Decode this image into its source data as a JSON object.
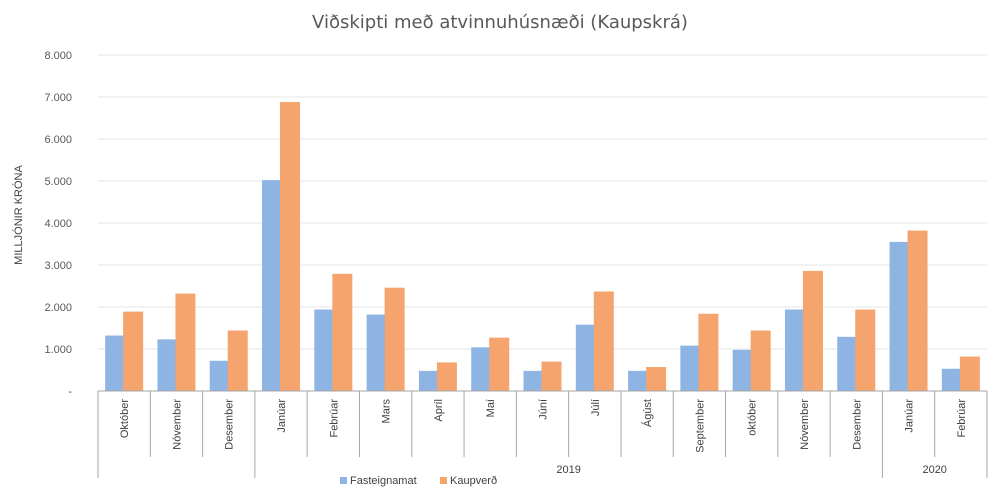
{
  "chart_data": {
    "type": "bar",
    "title": "Viðskipti með atvinnuhúsnæði (Kaupskrá)",
    "ylabel": "MILLJÓNIR KRÓNA",
    "xlabel": "",
    "ylim": [
      0,
      8000
    ],
    "yticks": [
      0,
      1000,
      2000,
      3000,
      4000,
      5000,
      6000,
      7000,
      8000
    ],
    "ytick_labels": [
      "-",
      "1.000",
      "2.000",
      "3.000",
      "4.000",
      "5.000",
      "6.000",
      "7.000",
      "8.000"
    ],
    "categories": [
      "Október",
      "Nóvember",
      "Desember",
      "Janúar",
      "Febrúar",
      "Mars",
      "Apríl",
      "Maí",
      "Júní",
      "Júlí",
      "Ágúst",
      "September",
      "október",
      "Nóvember",
      "Desember",
      "Janúar",
      "Febrúar"
    ],
    "groups": [
      {
        "label": "",
        "count": 3
      },
      {
        "label": "2019",
        "count": 12
      },
      {
        "label": "2020",
        "count": 2
      }
    ],
    "series": [
      {
        "name": "Fasteignamat",
        "color": "#8db4e2",
        "values": [
          1320,
          1230,
          720,
          5020,
          1940,
          1820,
          480,
          1040,
          480,
          1580,
          480,
          1080,
          980,
          1940,
          1290,
          3550,
          530
        ]
      },
      {
        "name": "Kaupverð",
        "color": "#f4a46c",
        "values": [
          1890,
          2320,
          1440,
          6880,
          2790,
          2460,
          680,
          1270,
          700,
          2370,
          570,
          1840,
          1440,
          2860,
          1940,
          3820,
          820
        ]
      }
    ],
    "grid": true,
    "legend_position": "bottom"
  }
}
